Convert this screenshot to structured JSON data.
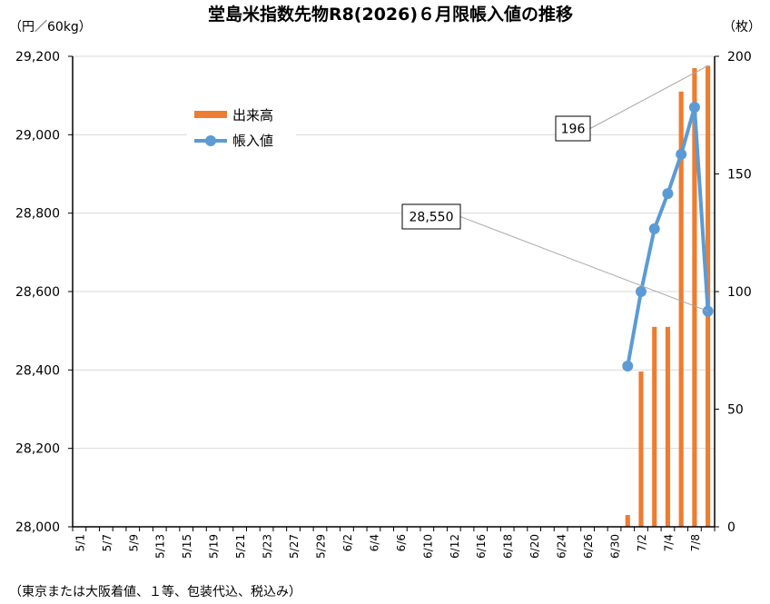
{
  "chart_data": {
    "type": "bar+line",
    "title": "堂島米指数先物R8(2026)６月限帳入値の推移",
    "y_left_unit": "（円／60kg）",
    "y_right_unit": "（枚）",
    "footnote": "（東京または大阪着値、１等、包装代込、税込み）",
    "y_left_range": [
      28000,
      29200
    ],
    "y_left_ticks": [
      "28,000",
      "28,200",
      "28,400",
      "28,600",
      "28,800",
      "29,000",
      "29,200"
    ],
    "y_left_tick_values": [
      28000,
      28200,
      28400,
      28600,
      28800,
      29000,
      29200
    ],
    "y_right_range": [
      0,
      200
    ],
    "y_right_ticks": [
      "0",
      "50",
      "100",
      "150",
      "200"
    ],
    "y_right_tick_values": [
      0,
      50,
      100,
      150,
      200
    ],
    "grid": true,
    "legend_position": "top-left",
    "x_tick_labels": [
      "5/1",
      "5/7",
      "5/9",
      "5/13",
      "5/15",
      "5/19",
      "5/21",
      "5/23",
      "5/27",
      "5/29",
      "6/2",
      "6/4",
      "6/6",
      "6/10",
      "6/12",
      "6/16",
      "6/18",
      "6/20",
      "6/24",
      "6/26",
      "6/30",
      "7/2",
      "7/4",
      "7/8"
    ],
    "x_tick_positions": [
      0,
      2,
      4,
      6,
      8,
      10,
      12,
      14,
      16,
      18,
      20,
      22,
      24,
      26,
      28,
      30,
      32,
      34,
      36,
      38,
      40,
      42,
      44,
      46
    ],
    "category_count": 48,
    "series": [
      {
        "name": "出来高",
        "kind": "bar",
        "axis": "right",
        "color": "#ED7D31",
        "points": [
          {
            "index": 41,
            "value": 5
          },
          {
            "index": 42,
            "value": 66
          },
          {
            "index": 43,
            "value": 85
          },
          {
            "index": 44,
            "value": 85
          },
          {
            "index": 45,
            "value": 185
          },
          {
            "index": 46,
            "value": 195
          },
          {
            "index": 47,
            "value": 196
          }
        ]
      },
      {
        "name": "帳入値",
        "kind": "line",
        "axis": "left",
        "color": "#5B9BD5",
        "points": [
          {
            "index": 41,
            "value": 28410
          },
          {
            "index": 42,
            "value": 28600
          },
          {
            "index": 43,
            "value": 28760
          },
          {
            "index": 44,
            "value": 28850
          },
          {
            "index": 45,
            "value": 28950
          },
          {
            "index": 46,
            "value": 29070
          },
          {
            "index": 47,
            "value": 28550
          }
        ]
      }
    ],
    "annotations": [
      {
        "text": "196",
        "series": "出来高",
        "point_index": 47
      },
      {
        "text": "28,550",
        "series": "帳入値",
        "point_index": 47
      }
    ]
  }
}
